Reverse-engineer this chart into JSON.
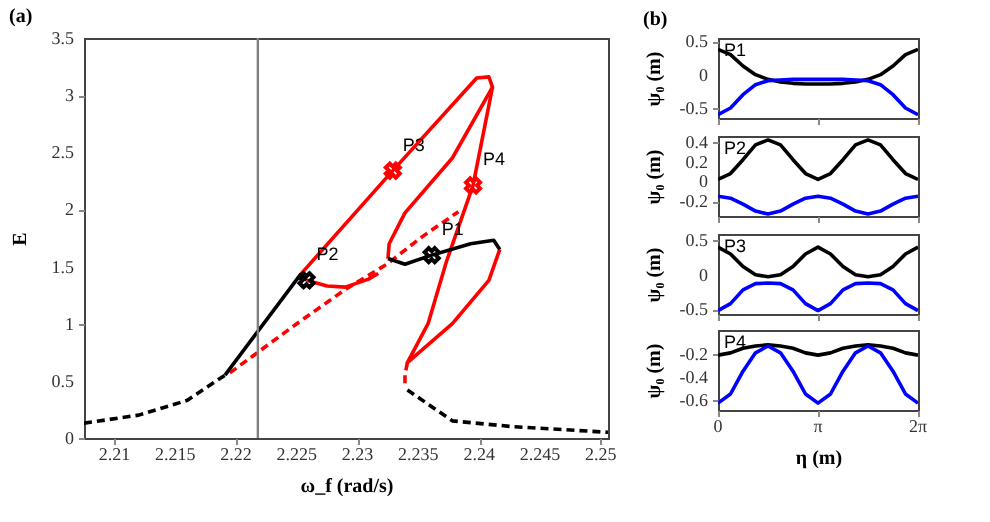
{
  "chart_data": [
    {
      "type": "line",
      "title": "(a)",
      "xlabel": "ω_f (rad/s)",
      "ylabel": "E",
      "xlim": [
        2.2075,
        2.2506
      ],
      "xticks": [
        2.21,
        2.215,
        2.22,
        2.225,
        2.23,
        2.235,
        2.24,
        2.245,
        2.25
      ],
      "ylim": [
        0,
        3.5
      ],
      "yticks": [
        0,
        0.5,
        1,
        1.5,
        2,
        2.5,
        3,
        3.5
      ],
      "ref_lines": [
        {
          "axis": "x",
          "value": 2.2218,
          "color": "#808080"
        }
      ],
      "series": [
        {
          "color": "#000000",
          "line_style": "dashed",
          "x": [
            2.2075,
            2.212,
            2.216,
            2.2191
          ],
          "values": [
            0.13,
            0.2,
            0.33,
            0.55
          ]
        },
        {
          "color": "#000000",
          "line_style": "dashed",
          "x": [
            2.2341,
            2.2378,
            2.2427,
            2.2506
          ],
          "values": [
            0.42,
            0.15,
            0.1,
            0.05
          ]
        },
        {
          "color": "#ff0000",
          "line_style": "dashed",
          "x": [
            2.2195,
            2.225,
            2.229,
            2.2324,
            2.2353,
            2.2383
          ],
          "values": [
            0.57,
            1.0,
            1.3,
            1.52,
            1.76,
            1.98
          ]
        },
        {
          "color": "#ff0000",
          "line_style": "solid",
          "x": [
            2.2253,
            2.2329,
            2.2398,
            2.2408,
            2.2411,
            2.2395,
            2.2373,
            2.2358,
            2.2341,
            2.2378,
            2.2408,
            2.2417
          ],
          "values": [
            1.43,
            2.34,
            3.15,
            3.16,
            3.07,
            2.21,
            1.54,
            1.0,
            0.66,
            1.0,
            1.38,
            1.65
          ]
        },
        {
          "color": "#ff0000",
          "line_style": "solid",
          "x": [
            2.2411,
            2.2378,
            2.2339,
            2.2326,
            2.2325
          ],
          "values": [
            3.07,
            2.45,
            1.97,
            1.7,
            1.57
          ]
        },
        {
          "color": "#ff0000",
          "line_style": "solid",
          "x": [
            2.2258,
            2.2275,
            2.229,
            2.2309,
            2.2317
          ],
          "values": [
            1.38,
            1.33,
            1.32,
            1.39,
            1.44
          ]
        },
        {
          "color": "#000000",
          "line_style": "solid",
          "x": [
            2.2191,
            2.2253,
            2.2258
          ],
          "values": [
            0.55,
            1.43,
            1.38
          ]
        },
        {
          "color": "#000000",
          "line_style": "solid",
          "x": [
            2.2325,
            2.2339,
            2.2361,
            2.2393,
            2.2412,
            2.2417
          ],
          "values": [
            1.57,
            1.52,
            1.6,
            1.7,
            1.73,
            1.65
          ]
        },
        {
          "color": "#ff0000",
          "line_style": "dashed",
          "x": [
            2.2341,
            2.2339,
            2.2339
          ],
          "values": [
            0.66,
            0.55,
            0.47
          ]
        },
        {
          "type": "scatter",
          "marker": "cross",
          "name": "P1",
          "color": "#000000",
          "x": [
            2.2361
          ],
          "values": [
            1.6
          ]
        },
        {
          "type": "scatter",
          "marker": "cross",
          "name": "P2",
          "color": "#000000",
          "x": [
            2.2258
          ],
          "values": [
            1.38
          ]
        },
        {
          "type": "scatter",
          "marker": "cross",
          "name": "P3",
          "color": "#ff0000",
          "x": [
            2.2329
          ],
          "values": [
            2.34
          ]
        },
        {
          "type": "scatter",
          "marker": "cross",
          "name": "P4",
          "color": "#ff0000",
          "x": [
            2.2395
          ],
          "values": [
            2.21
          ]
        }
      ]
    },
    {
      "type": "line",
      "title": "(b)",
      "ylabel": "ψ₀ (m)",
      "annotations": [
        "P1"
      ],
      "tick_labels": "y",
      "x": [
        0,
        0.3927,
        0.7854,
        1.1781,
        1.5708,
        1.9635,
        2.3562,
        2.7489,
        3.1416,
        3.5343,
        3.927,
        4.3197,
        4.7124,
        5.1051,
        5.4978,
        5.8905,
        6.2832
      ],
      "xlim": [
        0,
        6.2832
      ],
      "xticks": [
        {
          "value": 0,
          "label": null
        },
        {
          "value": 3.1416,
          "label": null
        },
        {
          "value": 6.2832,
          "label": null
        }
      ],
      "ylim": [
        -0.65,
        0.55
      ],
      "yticks": [
        -0.5,
        0,
        0.5
      ],
      "series": [
        {
          "color": "#000000",
          "values": [
            0.38,
            0.3,
            0.13,
            0.0,
            -0.07,
            -0.11,
            -0.13,
            -0.14,
            -0.14,
            -0.14,
            -0.13,
            -0.11,
            -0.07,
            0.0,
            0.13,
            0.3,
            0.38
          ]
        },
        {
          "color": "#0000ff",
          "values": [
            -0.6,
            -0.5,
            -0.3,
            -0.15,
            -0.09,
            -0.08,
            -0.07,
            -0.07,
            -0.07,
            -0.07,
            -0.07,
            -0.08,
            -0.09,
            -0.15,
            -0.3,
            -0.5,
            -0.6
          ]
        }
      ]
    },
    {
      "type": "line",
      "ylabel": "ψ₀ (m)",
      "annotations": [
        "P2"
      ],
      "tick_labels": "y",
      "x": [
        0,
        0.3927,
        0.7854,
        1.1781,
        1.5708,
        1.9635,
        2.3562,
        2.7489,
        3.1416,
        3.5343,
        3.927,
        4.3197,
        4.7124,
        5.1051,
        5.4978,
        5.8905,
        6.2832
      ],
      "xlim": [
        0,
        6.2832
      ],
      "xticks": [
        {
          "value": 0,
          "label": null
        },
        {
          "value": 3.1416,
          "label": null
        },
        {
          "value": 6.2832,
          "label": null
        }
      ],
      "ylim": [
        -0.35,
        0.46
      ],
      "yticks": [
        -0.2,
        0,
        0.2,
        0.4
      ],
      "series": [
        {
          "color": "#000000",
          "values": [
            0.02,
            0.08,
            0.22,
            0.37,
            0.42,
            0.37,
            0.22,
            0.08,
            0.02,
            0.08,
            0.22,
            0.37,
            0.42,
            0.37,
            0.22,
            0.08,
            0.02
          ]
        },
        {
          "color": "#0000ff",
          "values": [
            -0.15,
            -0.17,
            -0.23,
            -0.3,
            -0.33,
            -0.3,
            -0.23,
            -0.17,
            -0.15,
            -0.17,
            -0.23,
            -0.3,
            -0.33,
            -0.3,
            -0.23,
            -0.17,
            -0.15
          ]
        }
      ]
    },
    {
      "type": "line",
      "ylabel": "ψ₀ (m)",
      "annotations": [
        "P3"
      ],
      "tick_labels": "y",
      "x": [
        0,
        0.3927,
        0.7854,
        1.1781,
        1.5708,
        1.9635,
        2.3562,
        2.7489,
        3.1416,
        3.5343,
        3.927,
        4.3197,
        4.7124,
        5.1051,
        5.4978,
        5.8905,
        6.2832
      ],
      "xlim": [
        0,
        6.2832
      ],
      "xticks": [
        {
          "value": 0,
          "label": null
        },
        {
          "value": 3.1416,
          "label": null
        },
        {
          "value": 6.2832,
          "label": null
        }
      ],
      "ylim": [
        -0.57,
        0.59
      ],
      "yticks": [
        -0.5,
        0,
        0.5
      ],
      "series": [
        {
          "color": "#000000",
          "values": [
            0.4,
            0.3,
            0.12,
            0.0,
            -0.03,
            0.0,
            0.12,
            0.3,
            0.4,
            0.3,
            0.12,
            0.0,
            -0.03,
            0.0,
            0.12,
            0.3,
            0.4
          ]
        },
        {
          "color": "#0000ff",
          "values": [
            -0.52,
            -0.42,
            -0.22,
            -0.13,
            -0.12,
            -0.13,
            -0.22,
            -0.42,
            -0.52,
            -0.42,
            -0.22,
            -0.13,
            -0.12,
            -0.13,
            -0.22,
            -0.42,
            -0.52
          ]
        }
      ]
    },
    {
      "type": "line",
      "xlabel": "η (m)",
      "ylabel": "ψ₀ (m)",
      "annotations": [
        "P4"
      ],
      "x": [
        0,
        0.3927,
        0.7854,
        1.1781,
        1.5708,
        1.9635,
        2.3562,
        2.7489,
        3.1416,
        3.5343,
        3.927,
        4.3197,
        4.7124,
        5.1051,
        5.4978,
        5.8905,
        6.2832
      ],
      "xlim": [
        0,
        6.2832
      ],
      "xticks": [
        {
          "value": 0,
          "label": "0"
        },
        {
          "value": 3.1416,
          "label": "π"
        },
        {
          "value": 6.2832,
          "label": "2π"
        }
      ],
      "ylim": [
        -0.69,
        0.01
      ],
      "yticks": [
        -0.6,
        -0.4,
        -0.2
      ],
      "series": [
        {
          "color": "#000000",
          "values": [
            -0.21,
            -0.19,
            -0.15,
            -0.13,
            -0.12,
            -0.13,
            -0.15,
            -0.19,
            -0.21,
            -0.19,
            -0.15,
            -0.13,
            -0.12,
            -0.13,
            -0.15,
            -0.19,
            -0.21
          ]
        },
        {
          "color": "#0000ff",
          "values": [
            -0.63,
            -0.55,
            -0.35,
            -0.19,
            -0.13,
            -0.19,
            -0.35,
            -0.55,
            -0.63,
            -0.55,
            -0.35,
            -0.19,
            -0.13,
            -0.19,
            -0.35,
            -0.55,
            -0.63
          ]
        }
      ]
    }
  ]
}
